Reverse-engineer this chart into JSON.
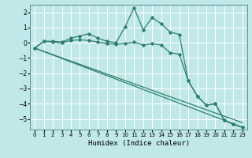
{
  "xlabel": "Humidex (Indice chaleur)",
  "bg_color": "#c0e8e8",
  "grid_color": "#ffffff",
  "line_color": "#2e7d6e",
  "xlim": [
    -0.5,
    23.5
  ],
  "ylim": [
    -5.7,
    2.5
  ],
  "yticks": [
    -5,
    -4,
    -3,
    -2,
    -1,
    0,
    1,
    2
  ],
  "xticks": [
    0,
    1,
    2,
    3,
    4,
    5,
    6,
    7,
    8,
    9,
    10,
    11,
    12,
    13,
    14,
    15,
    16,
    17,
    18,
    19,
    20,
    21,
    22,
    23
  ],
  "series_wiggly": {
    "x": [
      0,
      1,
      2,
      3,
      4,
      5,
      6,
      7,
      8,
      9,
      10,
      11,
      12,
      13,
      14,
      15,
      16,
      17,
      18,
      19,
      20,
      21,
      22,
      23
    ],
    "y": [
      -0.35,
      0.1,
      0.1,
      0.05,
      0.3,
      0.45,
      0.6,
      0.3,
      0.1,
      0.0,
      1.05,
      2.3,
      0.85,
      1.65,
      1.25,
      0.7,
      0.55,
      -2.5,
      -3.5,
      -4.1,
      -4.0,
      -5.1,
      -5.35,
      -5.55
    ]
  },
  "series_smooth": {
    "x": [
      0,
      1,
      2,
      3,
      4,
      5,
      6,
      7,
      8,
      9,
      10,
      11,
      12,
      13,
      14,
      15,
      16,
      17,
      18,
      19,
      20,
      21,
      22,
      23
    ],
    "y": [
      -0.35,
      0.1,
      0.05,
      0.0,
      0.15,
      0.2,
      0.15,
      0.05,
      -0.05,
      -0.1,
      -0.05,
      0.05,
      -0.15,
      -0.05,
      -0.15,
      -0.65,
      -0.75,
      -2.5,
      -3.5,
      -4.1,
      -4.0,
      -5.1,
      -5.35,
      -5.55
    ]
  },
  "line1": {
    "x": [
      0,
      23
    ],
    "y": [
      -0.35,
      -5.55
    ]
  },
  "line2": {
    "x": [
      0,
      23
    ],
    "y": [
      -0.35,
      -5.25
    ]
  }
}
